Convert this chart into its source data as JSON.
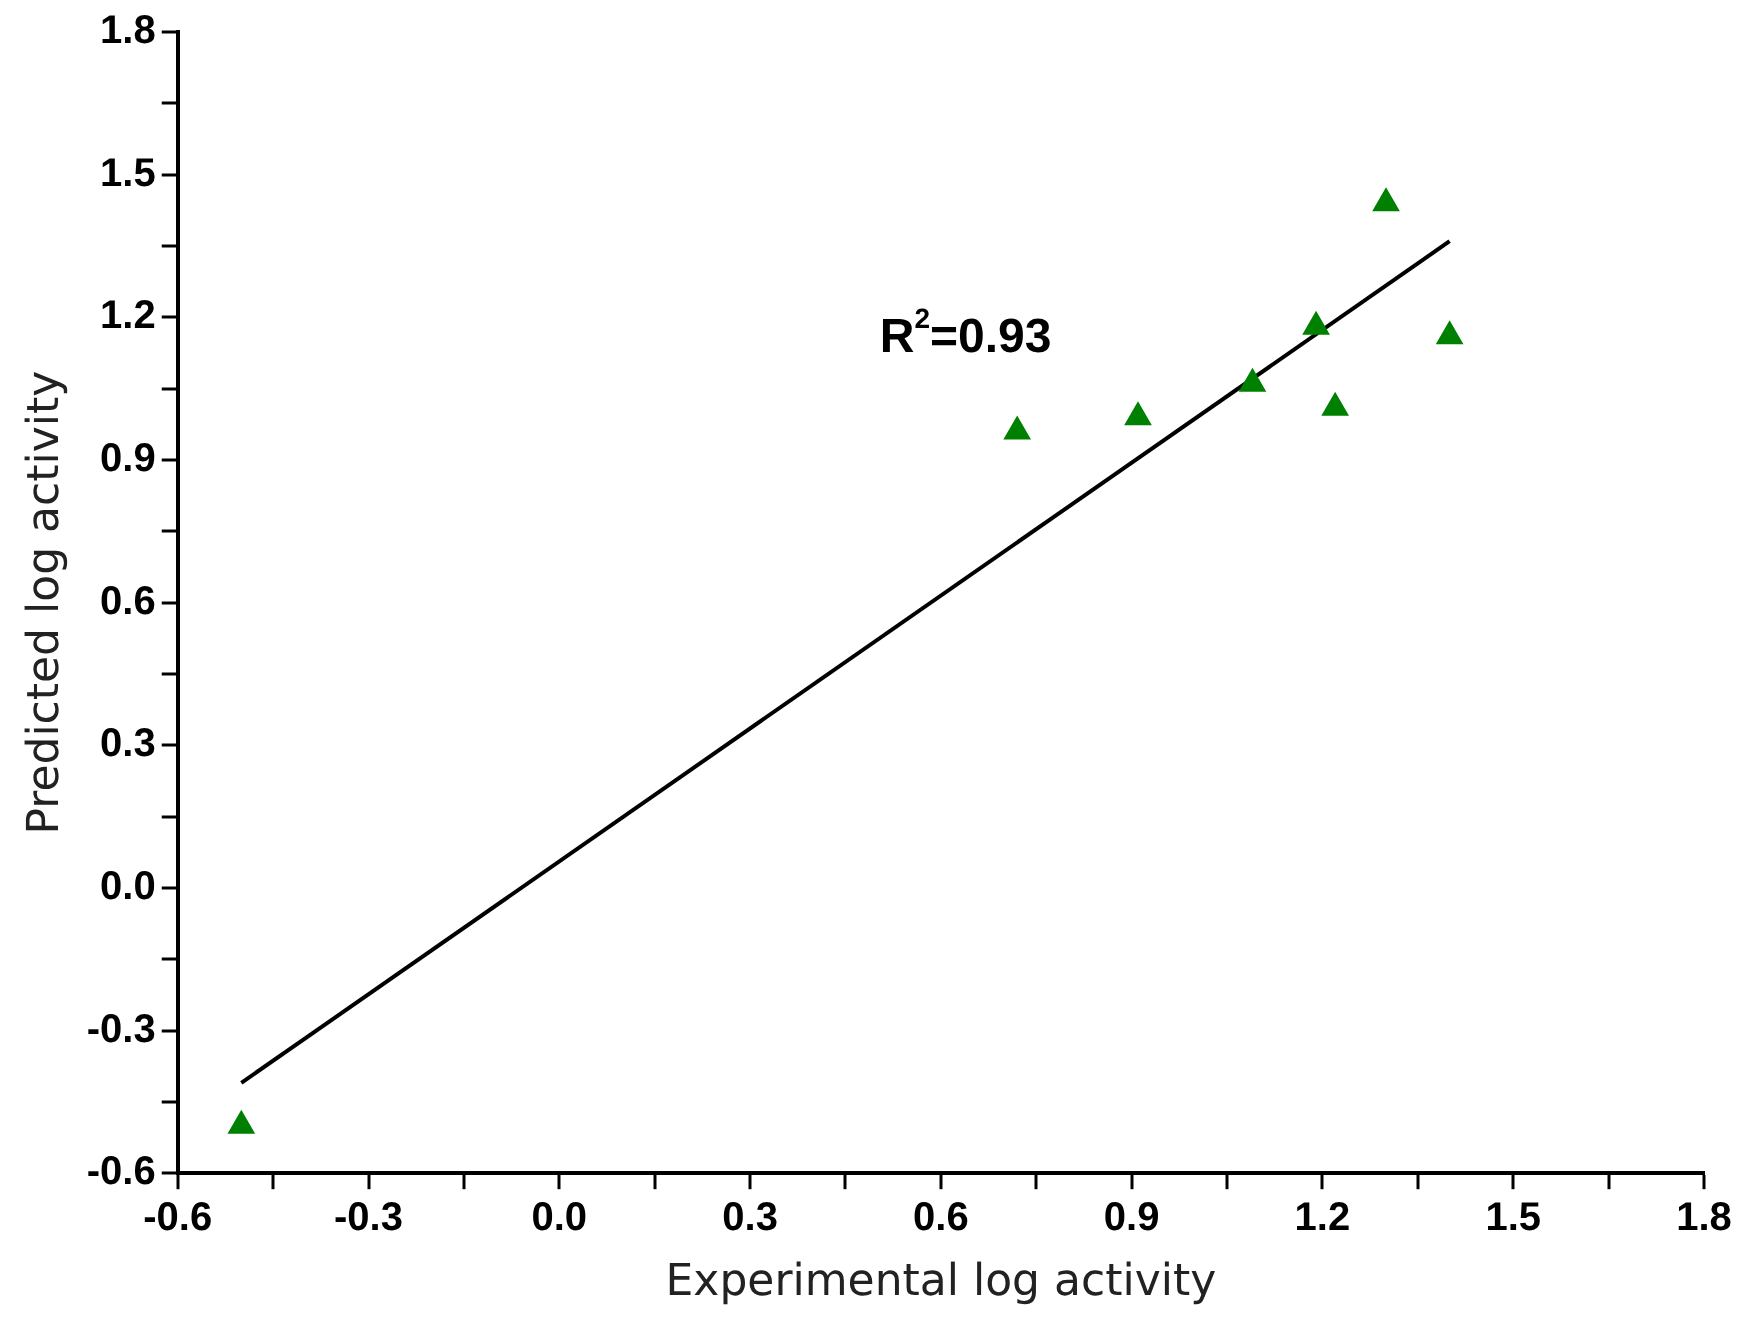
{
  "chart_data": {
    "type": "scatter",
    "xlabel": "Experimental log activity",
    "ylabel": "Predicted log activity",
    "xlim": [
      -0.6,
      1.8
    ],
    "xticks": [
      -0.6,
      -0.3,
      {
        "value": 0,
        "label": "0.0"
      },
      0.3,
      0.6,
      0.9,
      1.2,
      1.5,
      1.8
    ],
    "ylim": [
      -0.6,
      1.8
    ],
    "yticks": [
      -0.6,
      -0.3,
      {
        "value": 0,
        "label": "0.0"
      },
      0.3,
      0.6,
      0.9,
      1.2,
      1.5,
      1.8
    ],
    "marker": "triangle",
    "grid": false,
    "legend": false,
    "annotations": [
      "R$^{2}$=0.93"
    ],
    "series": [
      {
        "type": "scatter",
        "color": "#008000",
        "x": [
          -0.5,
          0.72,
          0.91,
          1.09,
          1.19,
          1.22,
          1.3,
          1.4
        ],
        "values": [
          -0.5,
          0.96,
          0.99,
          1.06,
          1.18,
          1.01,
          1.44,
          1.16
        ]
      },
      {
        "type": "line",
        "color": "#000000",
        "marker": "none",
        "x": [
          -0.5,
          1.4
        ],
        "values": [
          -0.41,
          1.36
        ]
      }
    ]
  }
}
